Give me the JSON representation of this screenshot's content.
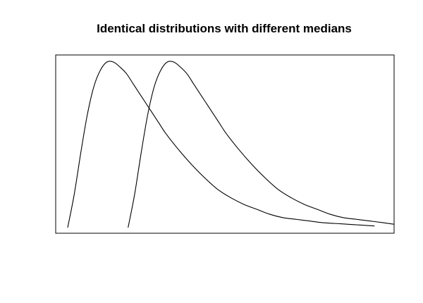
{
  "chart_data": {
    "type": "line",
    "title": "Identical distributions with different medians",
    "xlabel": "",
    "ylabel": "",
    "axes_visible": false,
    "grid": false,
    "legend": "none",
    "x_range": [
      0,
      10
    ],
    "y_range": [
      0,
      1.05
    ],
    "series": [
      {
        "x": [
          0,
          0.2,
          0.4,
          0.6,
          0.8,
          1.0,
          1.2,
          1.4,
          1.6,
          1.8,
          2.0,
          2.2,
          2.4,
          2.6,
          2.8,
          3.0,
          3.4,
          3.8,
          4.2,
          4.6,
          5.0,
          5.4,
          5.8,
          6.2,
          6.6,
          7.0,
          7.4,
          7.8,
          8.2,
          8.6,
          9.0,
          9.4
        ],
        "y": [
          0.0,
          0.2,
          0.45,
          0.68,
          0.85,
          0.95,
          1.0,
          1.0,
          0.97,
          0.93,
          0.87,
          0.81,
          0.75,
          0.69,
          0.63,
          0.57,
          0.47,
          0.38,
          0.3,
          0.23,
          0.18,
          0.14,
          0.11,
          0.08,
          0.06,
          0.05,
          0.04,
          0.03,
          0.025,
          0.02,
          0.015,
          0.01
        ]
      },
      {
        "x": [
          1.85,
          2.05,
          2.25,
          2.45,
          2.65,
          2.85,
          3.05,
          3.25,
          3.45,
          3.65,
          3.85,
          4.05,
          4.25,
          4.45,
          4.65,
          4.85,
          5.25,
          5.65,
          6.05,
          6.45,
          6.85,
          7.25,
          7.65,
          8.05,
          8.45,
          8.85,
          9.25,
          9.65,
          10.0
        ],
        "y": [
          0.0,
          0.2,
          0.45,
          0.68,
          0.85,
          0.95,
          1.0,
          1.0,
          0.97,
          0.93,
          0.87,
          0.81,
          0.75,
          0.69,
          0.63,
          0.57,
          0.47,
          0.38,
          0.3,
          0.23,
          0.18,
          0.14,
          0.11,
          0.08,
          0.06,
          0.05,
          0.04,
          0.03,
          0.02
        ]
      }
    ]
  },
  "colors": {
    "line": "#000000",
    "frame": "#000000",
    "background": "#ffffff"
  }
}
